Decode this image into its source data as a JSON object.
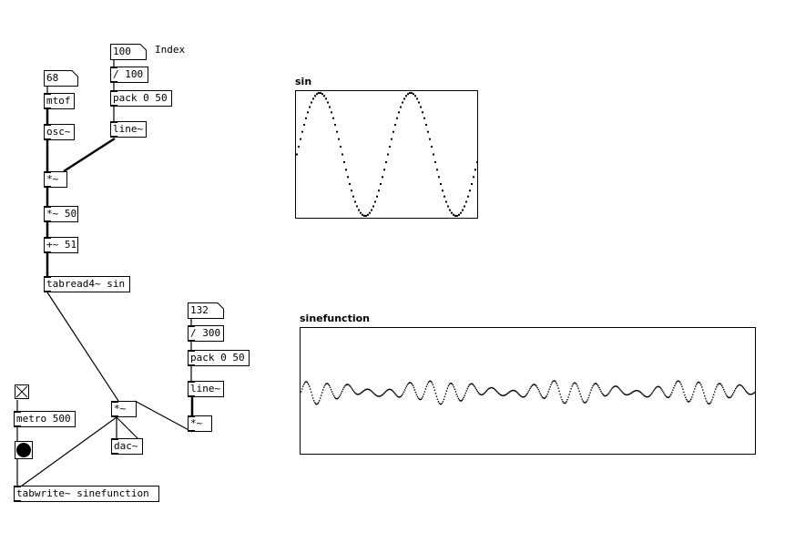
{
  "objects": {
    "mtof": "mtof",
    "osc": "osc~",
    "div100": "/ 100",
    "pack1": "pack 0 50",
    "line1": "line~",
    "mul1": "*~",
    "mul50": "*~ 50",
    "add51": "+~ 51",
    "tabread": "tabread4~ sin",
    "div300": "/ 300",
    "pack2": "pack 0 50",
    "line2": "line~",
    "mul2": "*~",
    "mul3": "*~",
    "dac": "dac~",
    "metro": "metro 500",
    "tabwrite": "tabwrite~ sinefunction"
  },
  "numbers": {
    "freq": "68",
    "index": "100",
    "amp": "132"
  },
  "comments": {
    "index": "Index"
  },
  "graphs": {
    "sin": {
      "label": "sin"
    },
    "sinefunction": {
      "label": "sinefunction"
    }
  },
  "colors": {
    "ink": "#000000",
    "background": "#ffffff"
  }
}
